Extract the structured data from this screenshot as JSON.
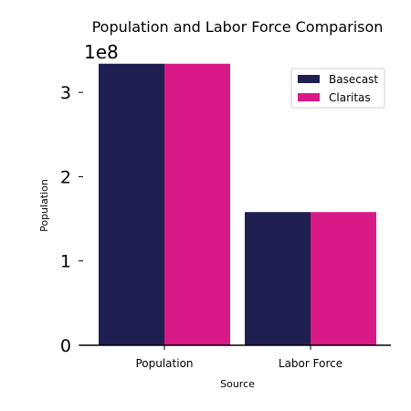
{
  "chart_data": {
    "type": "bar",
    "title": "Population and Labor Force Comparison",
    "xlabel": "Source",
    "ylabel": "Population",
    "categories": [
      "Population",
      "Labor Force"
    ],
    "series": [
      {
        "name": "Basecast",
        "color": "#1f1f52",
        "values": [
          334000000,
          158000000
        ]
      },
      {
        "name": "Claritas",
        "color": "#d91986",
        "values": [
          334000000,
          158000000
        ]
      }
    ],
    "ylim": [
      0,
      350000000
    ],
    "yticks": [
      0,
      100000000,
      200000000,
      300000000
    ],
    "ytick_labels": [
      "0",
      "1",
      "2",
      "3"
    ],
    "y_exponent_label": "1e8",
    "grid": false,
    "legend_position": "top-right"
  }
}
